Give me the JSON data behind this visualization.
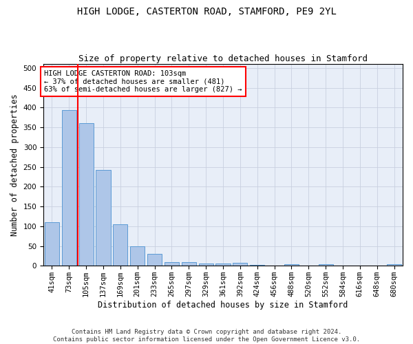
{
  "title": "HIGH LODGE, CASTERTON ROAD, STAMFORD, PE9 2YL",
  "subtitle": "Size of property relative to detached houses in Stamford",
  "xlabel": "Distribution of detached houses by size in Stamford",
  "ylabel": "Number of detached properties",
  "bar_color": "#aec6e8",
  "bar_edge_color": "#5b9bd5",
  "categories": [
    "41sqm",
    "73sqm",
    "105sqm",
    "137sqm",
    "169sqm",
    "201sqm",
    "233sqm",
    "265sqm",
    "297sqm",
    "329sqm",
    "361sqm",
    "392sqm",
    "424sqm",
    "456sqm",
    "488sqm",
    "520sqm",
    "552sqm",
    "584sqm",
    "616sqm",
    "648sqm",
    "680sqm"
  ],
  "values": [
    110,
    393,
    360,
    243,
    105,
    50,
    30,
    10,
    9,
    6,
    6,
    7,
    3,
    0,
    4,
    0,
    4,
    0,
    0,
    0,
    4
  ],
  "annotation_text": "HIGH LODGE CASTERTON ROAD: 103sqm\n← 37% of detached houses are smaller (481)\n63% of semi-detached houses are larger (827) →",
  "annotation_box_color": "white",
  "annotation_box_edge_color": "red",
  "vline_color": "red",
  "vline_x_index": 2,
  "ylim": [
    0,
    510
  ],
  "yticks": [
    0,
    50,
    100,
    150,
    200,
    250,
    300,
    350,
    400,
    450,
    500
  ],
  "grid_color": "#c8d0e0",
  "bg_color": "#e8eef8",
  "footer_line1": "Contains HM Land Registry data © Crown copyright and database right 2024.",
  "footer_line2": "Contains public sector information licensed under the Open Government Licence v3.0.",
  "title_fontsize": 10,
  "subtitle_fontsize": 9,
  "axis_label_fontsize": 8.5,
  "tick_fontsize": 7.5,
  "annotation_fontsize": 7.5,
  "footer_fontsize": 6.5
}
